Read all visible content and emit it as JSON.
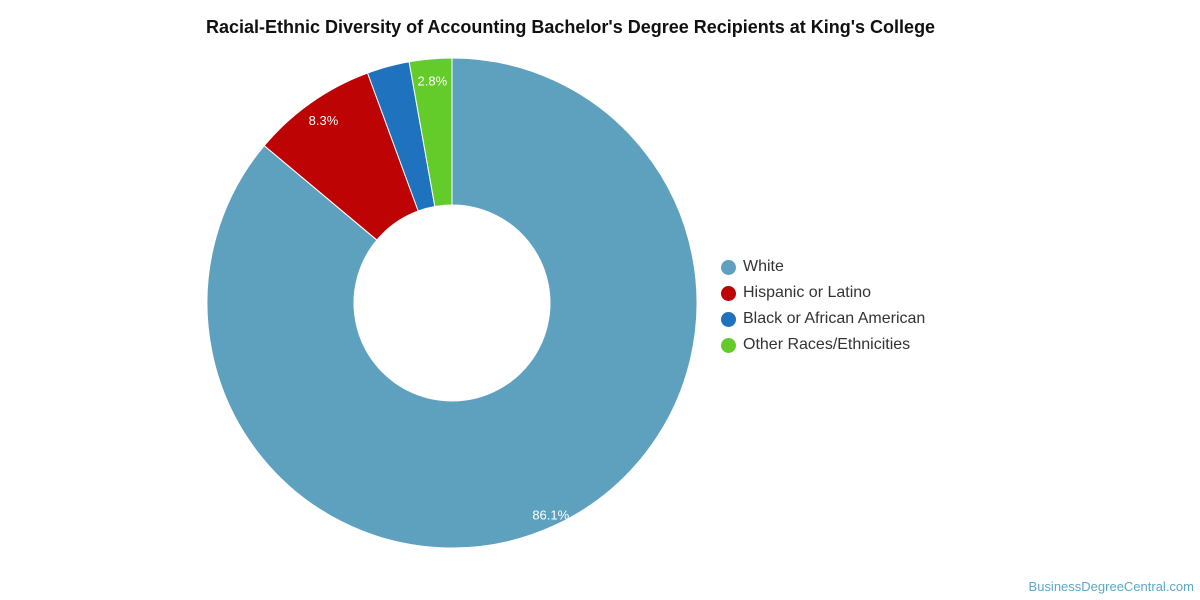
{
  "chart_data": {
    "type": "pie",
    "title": "Racial-Ethnic Diversity of Accounting Bachelor's Degree Recipients at King's College",
    "series": [
      {
        "name": "White",
        "value": 86.1,
        "label": "86.1%",
        "color": "#5ea1bf"
      },
      {
        "name": "Hispanic or Latino",
        "value": 8.3,
        "label": "8.3%",
        "color": "#bd0303"
      },
      {
        "name": "Black or African American",
        "value": 2.8,
        "label": "",
        "color": "#1f72bd"
      },
      {
        "name": "Other Races/Ethnicities",
        "value": 2.8,
        "label": "2.8%",
        "color": "#63cc2a"
      }
    ],
    "legend_position": "right",
    "donut": true
  },
  "footer": {
    "credit": "BusinessDegreeCentral.com"
  }
}
